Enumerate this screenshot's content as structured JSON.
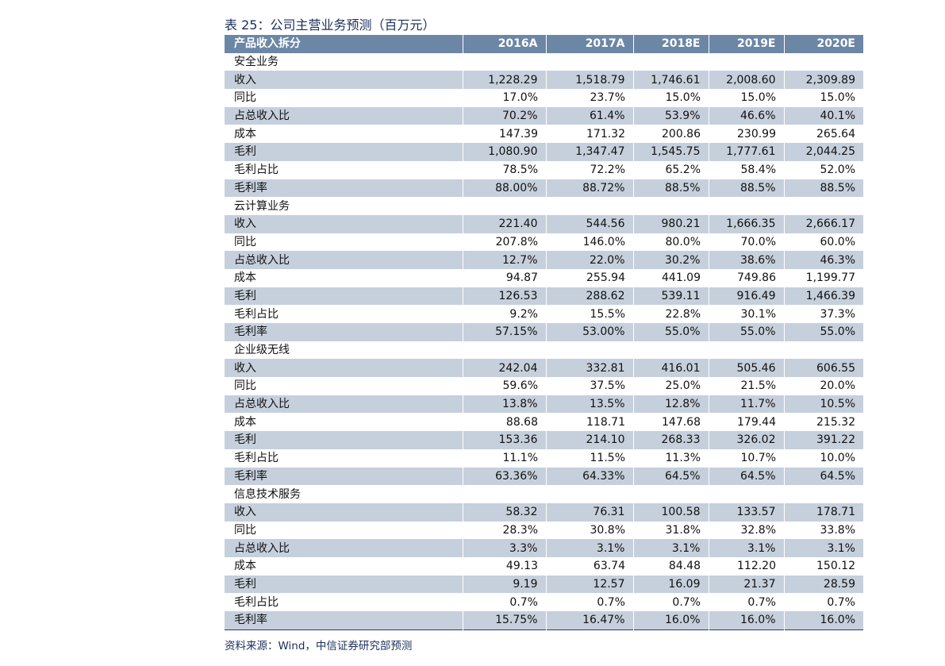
{
  "title": "表 25：公司主营业务预测（百万元）",
  "table": {
    "header": {
      "label": "产品收入拆分",
      "years": [
        "2016A",
        "2017A",
        "2018E",
        "2019E",
        "2020E"
      ]
    },
    "rows": [
      {
        "label": "安全业务",
        "section": true,
        "values": []
      },
      {
        "label": "收入",
        "values": [
          "1,228.29",
          "1,518.79",
          "1,746.61",
          "2,008.60",
          "2,309.89"
        ]
      },
      {
        "label": "同比",
        "values": [
          "17.0%",
          "23.7%",
          "15.0%",
          "15.0%",
          "15.0%"
        ]
      },
      {
        "label": "占总收入比",
        "values": [
          "70.2%",
          "61.4%",
          "53.9%",
          "46.6%",
          "40.1%"
        ]
      },
      {
        "label": "成本",
        "values": [
          "147.39",
          "171.32",
          "200.86",
          "230.99",
          "265.64"
        ]
      },
      {
        "label": "毛利",
        "values": [
          "1,080.90",
          "1,347.47",
          "1,545.75",
          "1,777.61",
          "2,044.25"
        ]
      },
      {
        "label": "毛利占比",
        "values": [
          "78.5%",
          "72.2%",
          "65.2%",
          "58.4%",
          "52.0%"
        ]
      },
      {
        "label": "毛利率",
        "values": [
          "88.00%",
          "88.72%",
          "88.5%",
          "88.5%",
          "88.5%"
        ]
      },
      {
        "label": "云计算业务",
        "section": true,
        "values": []
      },
      {
        "label": "收入",
        "values": [
          "221.40",
          "544.56",
          "980.21",
          "1,666.35",
          "2,666.17"
        ]
      },
      {
        "label": "同比",
        "values": [
          "207.8%",
          "146.0%",
          "80.0%",
          "70.0%",
          "60.0%"
        ]
      },
      {
        "label": "占总收入比",
        "values": [
          "12.7%",
          "22.0%",
          "30.2%",
          "38.6%",
          "46.3%"
        ]
      },
      {
        "label": "成本",
        "values": [
          "94.87",
          "255.94",
          "441.09",
          "749.86",
          "1,199.77"
        ]
      },
      {
        "label": "毛利",
        "values": [
          "126.53",
          "288.62",
          "539.11",
          "916.49",
          "1,466.39"
        ]
      },
      {
        "label": "毛利占比",
        "values": [
          "9.2%",
          "15.5%",
          "22.8%",
          "30.1%",
          "37.3%"
        ]
      },
      {
        "label": "毛利率",
        "values": [
          "57.15%",
          "53.00%",
          "55.0%",
          "55.0%",
          "55.0%"
        ]
      },
      {
        "label": "企业级无线",
        "section": true,
        "values": []
      },
      {
        "label": "收入",
        "values": [
          "242.04",
          "332.81",
          "416.01",
          "505.46",
          "606.55"
        ]
      },
      {
        "label": "同比",
        "values": [
          "59.6%",
          "37.5%",
          "25.0%",
          "21.5%",
          "20.0%"
        ]
      },
      {
        "label": "占总收入比",
        "values": [
          "13.8%",
          "13.5%",
          "12.8%",
          "11.7%",
          "10.5%"
        ]
      },
      {
        "label": "成本",
        "values": [
          "88.68",
          "118.71",
          "147.68",
          "179.44",
          "215.32"
        ]
      },
      {
        "label": "毛利",
        "values": [
          "153.36",
          "214.10",
          "268.33",
          "326.02",
          "391.22"
        ]
      },
      {
        "label": "毛利占比",
        "values": [
          "11.1%",
          "11.5%",
          "11.3%",
          "10.7%",
          "10.0%"
        ]
      },
      {
        "label": "毛利率",
        "values": [
          "63.36%",
          "64.33%",
          "64.5%",
          "64.5%",
          "64.5%"
        ]
      },
      {
        "label": "信息技术服务",
        "section": true,
        "values": []
      },
      {
        "label": "收入",
        "values": [
          "58.32",
          "76.31",
          "100.58",
          "133.57",
          "178.71"
        ]
      },
      {
        "label": "同比",
        "values": [
          "28.3%",
          "30.8%",
          "31.8%",
          "32.8%",
          "33.8%"
        ]
      },
      {
        "label": "占总收入比",
        "values": [
          "3.3%",
          "3.1%",
          "3.1%",
          "3.1%",
          "3.1%"
        ]
      },
      {
        "label": "成本",
        "values": [
          "49.13",
          "63.74",
          "84.48",
          "112.20",
          "150.12"
        ]
      },
      {
        "label": "毛利",
        "values": [
          "9.19",
          "12.57",
          "16.09",
          "21.37",
          "28.59"
        ]
      },
      {
        "label": "毛利占比",
        "values": [
          "0.7%",
          "0.7%",
          "0.7%",
          "0.7%",
          "0.7%"
        ]
      },
      {
        "label": "毛利率",
        "values": [
          "15.75%",
          "16.47%",
          "16.0%",
          "16.0%",
          "16.0%"
        ]
      }
    ]
  },
  "source": "资料来源：Wind，中信证券研究部预测",
  "colors": {
    "header_bg": "#6c86a6",
    "alt_row_bg": "#c6d0dc",
    "title_text": "#1b2f5b"
  }
}
